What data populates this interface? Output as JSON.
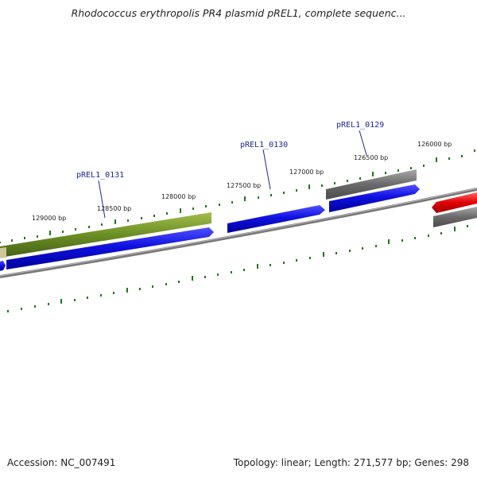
{
  "title": "Rhodococcus erythropolis PR4 plasmid pREL1, complete sequenc...",
  "footer": {
    "accession": "Accession: NC_007491",
    "summary": "Topology: linear; Length: 271,577 bp; Genes: 298"
  },
  "ruler_labels": [
    "129000 bp",
    "128500 bp",
    "128000 bp",
    "127500 bp",
    "127000 bp",
    "126500 bp",
    "126000 bp"
  ],
  "gene_labels": [
    "pREL1_0131",
    "pREL1_0130",
    "pREL1_0129"
  ],
  "colors": {
    "cds_forward": "#1010e0",
    "cds_olive": "#6b8e23",
    "cds_gray": "#707070",
    "cds_red": "#e00000",
    "backbone": "#888888",
    "tick": "#1a7a1a",
    "gene_label": "#1a2a9a"
  }
}
